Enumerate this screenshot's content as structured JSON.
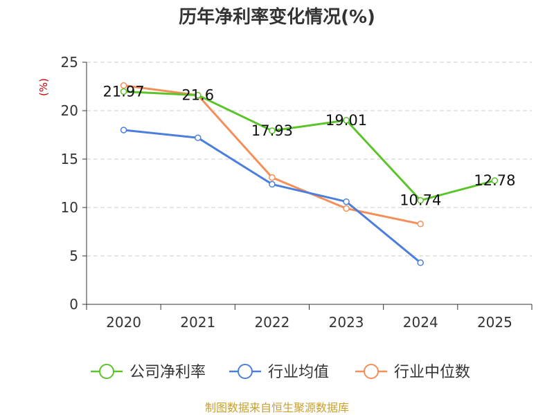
{
  "chart_data": {
    "type": "line",
    "title": "历年净利率变化情况(%)",
    "ylabel": "(%)",
    "xlabel": "",
    "categories": [
      "2020",
      "2021",
      "2022",
      "2023",
      "2024",
      "2025"
    ],
    "ylim": [
      0,
      25
    ],
    "yticks": [
      0,
      5,
      10,
      15,
      20,
      25
    ],
    "grid": true,
    "legend_position": "bottom",
    "series": [
      {
        "name": "公司净利率",
        "color": "#5bc42a",
        "values": [
          21.97,
          21.6,
          17.93,
          19.01,
          10.74,
          12.78
        ],
        "labels": [
          "21.97",
          "21.6",
          "17.93",
          "19.01",
          "10.74",
          "12.78"
        ]
      },
      {
        "name": "行业均值",
        "color": "#4c7fdc",
        "values": [
          18.0,
          17.2,
          12.4,
          10.6,
          4.3,
          null
        ],
        "labels": []
      },
      {
        "name": "行业中位数",
        "color": "#f58f59",
        "values": [
          22.6,
          21.6,
          13.1,
          9.9,
          8.3,
          null
        ],
        "labels": []
      }
    ]
  },
  "source_text": "制图数据来自恒生聚源数据库",
  "colors": {
    "title": "#333333",
    "axis": "#333333",
    "grid": "#cccccc",
    "ylabel": "#cc0000",
    "source": "#c8a030"
  }
}
